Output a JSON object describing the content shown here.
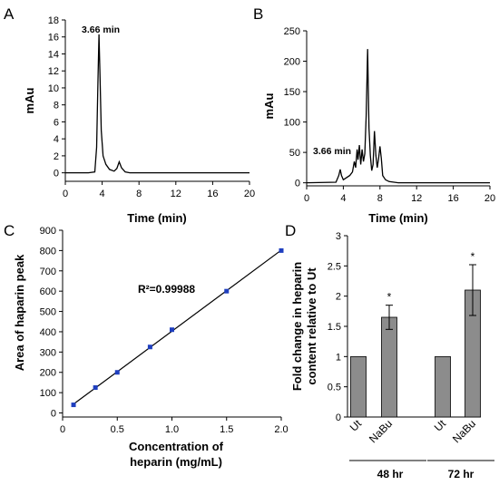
{
  "colors": {
    "axis": "#000000",
    "bar_fill": "#8c8c8c",
    "marker": "#1f3fbf",
    "line": "#000000"
  },
  "chart_data": [
    {
      "panel": "A",
      "type": "line",
      "xlabel": "Time (min)",
      "ylabel": "mAu",
      "xlim": [
        0,
        20
      ],
      "ylim": [
        -1,
        18
      ],
      "xticks": [
        0,
        4,
        8,
        12,
        16,
        20
      ],
      "yticks": [
        0,
        2,
        4,
        6,
        8,
        10,
        12,
        14,
        16,
        18
      ],
      "annotation": {
        "text": "3.66 min",
        "x": 3.66,
        "y": 16.3
      },
      "x": [
        0,
        2.5,
        3.2,
        3.4,
        3.55,
        3.66,
        3.75,
        3.9,
        4.1,
        4.4,
        4.8,
        5.3,
        5.6,
        5.85,
        6.1,
        6.5,
        7,
        8,
        10,
        14,
        20
      ],
      "y": [
        0,
        0,
        0.1,
        3,
        11,
        16.3,
        12,
        5,
        2,
        1,
        0.4,
        0.2,
        0.5,
        1.3,
        0.6,
        0.1,
        0,
        0,
        0,
        0,
        0
      ]
    },
    {
      "panel": "B",
      "type": "line",
      "xlabel": "Time (min)",
      "ylabel": "mAu",
      "xlim": [
        0,
        20
      ],
      "ylim": [
        -5,
        250
      ],
      "xticks": [
        0,
        4,
        8,
        12,
        16,
        20
      ],
      "yticks": [
        0,
        50,
        100,
        150,
        200,
        250
      ],
      "annotation": {
        "text": "3.66 min",
        "x": 3.66,
        "y": 22
      },
      "x": [
        0,
        3.2,
        3.5,
        3.66,
        3.8,
        4.0,
        4.3,
        4.7,
        5.0,
        5.2,
        5.35,
        5.5,
        5.6,
        5.75,
        5.9,
        6.05,
        6.2,
        6.35,
        6.5,
        6.65,
        6.8,
        6.95,
        7.1,
        7.25,
        7.4,
        7.55,
        7.7,
        7.85,
        8.0,
        8.15,
        8.3,
        8.6,
        9,
        10,
        14,
        20
      ],
      "y": [
        0,
        1,
        12,
        22,
        12,
        5,
        8,
        12,
        18,
        35,
        25,
        55,
        38,
        62,
        30,
        55,
        35,
        48,
        110,
        220,
        90,
        45,
        20,
        30,
        85,
        45,
        25,
        40,
        60,
        40,
        12,
        5,
        2,
        0,
        0,
        0
      ]
    },
    {
      "panel": "C",
      "type": "scatter",
      "xlabel": "Concentration of heparin (mg/mL)",
      "ylabel": "Area of haparin peak",
      "xlim": [
        0,
        2.0
      ],
      "ylim": [
        -20,
        900
      ],
      "xticks": [
        0,
        0.5,
        1.0,
        1.5,
        2.0
      ],
      "yticks": [
        0,
        100,
        200,
        300,
        400,
        500,
        600,
        700,
        800,
        900
      ],
      "annotation": "R²=0.99988",
      "x": [
        0.1,
        0.3,
        0.5,
        0.8,
        1.0,
        1.5,
        2.0
      ],
      "y": [
        40,
        125,
        200,
        325,
        410,
        600,
        800
      ]
    },
    {
      "panel": "D",
      "type": "bar",
      "ylabel": "Fold change in heparin content relative to Ut",
      "ylim": [
        0,
        3
      ],
      "yticks": [
        0,
        0.5,
        1,
        1.5,
        2,
        2.5,
        3
      ],
      "categories": [
        "Ut",
        "NaBu",
        "Ut",
        "NaBu"
      ],
      "groups": [
        "48 hr",
        "72 hr"
      ],
      "values": [
        1,
        1.65,
        1,
        2.1
      ],
      "errors": [
        0,
        0.2,
        0,
        0.42
      ],
      "significance": [
        "",
        "*",
        "",
        "*"
      ]
    }
  ]
}
